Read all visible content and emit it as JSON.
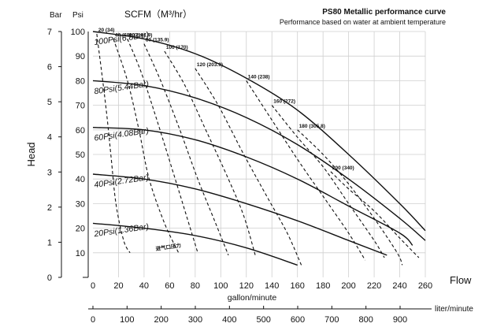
{
  "chart_data": {
    "type": "line",
    "title": "PS80 Metallic performance curve",
    "subtitle": "Performance based on water at ambient temperature",
    "scfm_label": "SCFM（M³/hr）",
    "unit_bar": "Bar",
    "unit_psi": "Psi",
    "ylabel": "Head",
    "xlabel": "gallon/minute",
    "flow_label": "Flow",
    "liter_label": "liter/minute",
    "xlim": [
      0,
      260
    ],
    "ylim_psi": [
      0,
      100
    ],
    "ylim_bar": [
      0,
      7
    ],
    "x_ticks": [
      0,
      20,
      40,
      60,
      80,
      100,
      120,
      140,
      160,
      180,
      200,
      220,
      240,
      260
    ],
    "psi_ticks": [
      10,
      20,
      30,
      40,
      50,
      60,
      70,
      80,
      90,
      100
    ],
    "bar_ticks": [
      0,
      1,
      2,
      3,
      4,
      5,
      6,
      7
    ],
    "liter_ticks": [
      0,
      100,
      200,
      300,
      400,
      500,
      600,
      700,
      800,
      900
    ],
    "grid": true,
    "series": [
      {
        "name": "100Psi(6.8Bar)",
        "points": [
          [
            0,
            100
          ],
          [
            40,
            97
          ],
          [
            80,
            91
          ],
          [
            120,
            81
          ],
          [
            160,
            68
          ],
          [
            200,
            50
          ],
          [
            240,
            30
          ],
          [
            260,
            19
          ]
        ]
      },
      {
        "name": "80Psi(5.44Bar)",
        "points": [
          [
            0,
            80
          ],
          [
            40,
            78
          ],
          [
            80,
            73
          ],
          [
            120,
            65
          ],
          [
            160,
            54
          ],
          [
            200,
            40
          ],
          [
            240,
            24
          ],
          [
            260,
            15
          ]
        ]
      },
      {
        "name": "60Psi(4.08Bar)",
        "points": [
          [
            0,
            61
          ],
          [
            40,
            60
          ],
          [
            80,
            56
          ],
          [
            120,
            49
          ],
          [
            160,
            40
          ],
          [
            200,
            29
          ],
          [
            240,
            18
          ],
          [
            250,
            13
          ]
        ]
      },
      {
        "name": "40Psi(2.72Bar)",
        "points": [
          [
            0,
            42
          ],
          [
            40,
            40
          ],
          [
            80,
            36
          ],
          [
            120,
            30
          ],
          [
            160,
            23
          ],
          [
            200,
            15
          ],
          [
            230,
            9
          ]
        ]
      },
      {
        "name": "20Psi(1.36Bar)",
        "points": [
          [
            0,
            22
          ],
          [
            40,
            20
          ],
          [
            80,
            17
          ],
          [
            120,
            12
          ],
          [
            160,
            5
          ]
        ]
      }
    ],
    "air_label": "进气口压力",
    "air_curves": [
      {
        "label": "20 (34)",
        "points": [
          [
            3,
            99
          ],
          [
            10,
            70
          ],
          [
            14,
            50
          ],
          [
            18,
            30
          ],
          [
            24,
            15
          ],
          [
            29,
            10
          ]
        ]
      },
      {
        "label": "40 (68)",
        "points": [
          [
            16,
            97
          ],
          [
            27,
            80
          ],
          [
            36,
            60
          ],
          [
            44,
            40
          ],
          [
            56,
            22
          ],
          [
            67,
            10
          ]
        ]
      },
      {
        "label": "60 (101.9)",
        "points": [
          [
            27,
            97
          ],
          [
            38,
            83
          ],
          [
            50,
            64
          ],
          [
            62,
            44
          ],
          [
            72,
            27
          ],
          [
            82,
            10
          ]
        ]
      },
      {
        "label": "80 (135.9)",
        "points": [
          [
            40,
            95
          ],
          [
            53,
            80
          ],
          [
            68,
            60
          ],
          [
            82,
            40
          ],
          [
            96,
            22
          ],
          [
            106,
            9
          ]
        ]
      },
      {
        "label": "100 (170)",
        "points": [
          [
            56,
            92
          ],
          [
            72,
            78
          ],
          [
            90,
            58
          ],
          [
            106,
            40
          ],
          [
            118,
            25
          ],
          [
            127,
            9
          ]
        ]
      },
      {
        "label": "120 (203.9)",
        "points": [
          [
            80,
            85
          ],
          [
            98,
            70
          ],
          [
            118,
            50
          ],
          [
            136,
            33
          ],
          [
            152,
            18
          ],
          [
            163,
            5
          ]
        ]
      },
      {
        "label": "140 (238)",
        "points": [
          [
            120,
            80
          ],
          [
            140,
            64
          ],
          [
            160,
            48
          ],
          [
            180,
            33
          ],
          [
            200,
            18
          ],
          [
            213,
            7
          ]
        ]
      },
      {
        "label": "160 (272)",
        "points": [
          [
            140,
            70
          ],
          [
            160,
            57
          ],
          [
            180,
            45
          ],
          [
            200,
            30
          ],
          [
            220,
            15
          ],
          [
            228,
            8
          ]
        ]
      },
      {
        "label": "180 (305.8)",
        "points": [
          [
            160,
            60
          ],
          [
            180,
            50
          ],
          [
            200,
            38
          ],
          [
            220,
            24
          ],
          [
            238,
            10
          ],
          [
            242,
            5
          ]
        ]
      },
      {
        "label": "200 (340)",
        "points": [
          [
            186,
            43
          ],
          [
            200,
            36
          ],
          [
            220,
            27
          ],
          [
            240,
            16
          ],
          [
            255,
            8
          ]
        ]
      }
    ]
  }
}
